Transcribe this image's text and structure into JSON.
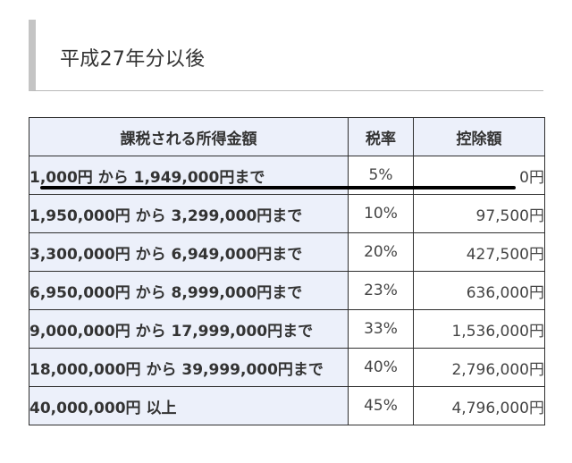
{
  "section_heading": "平成27年分以後",
  "table": {
    "headers": [
      "課税される所得金額",
      "税率",
      "控除額"
    ],
    "rows": [
      {
        "range": "1,000円 から 1,949,000円まで",
        "rate": "5%",
        "deduction": "0円"
      },
      {
        "range": "1,950,000円 から 3,299,000円まで",
        "rate": "10%",
        "deduction": "97,500円"
      },
      {
        "range": "3,300,000円 から 6,949,000円まで",
        "rate": "20%",
        "deduction": "427,500円"
      },
      {
        "range": "6,950,000円 から 8,999,000円まで",
        "rate": "23%",
        "deduction": "636,000円"
      },
      {
        "range": "9,000,000円 から 17,999,000円まで",
        "rate": "33%",
        "deduction": "1,536,000円"
      },
      {
        "range": "18,000,000円 から 39,999,000円まで",
        "rate": "40%",
        "deduction": "2,796,000円"
      },
      {
        "range": "40,000,000円 以上",
        "rate": "45%",
        "deduction": "4,796,000円"
      }
    ]
  }
}
